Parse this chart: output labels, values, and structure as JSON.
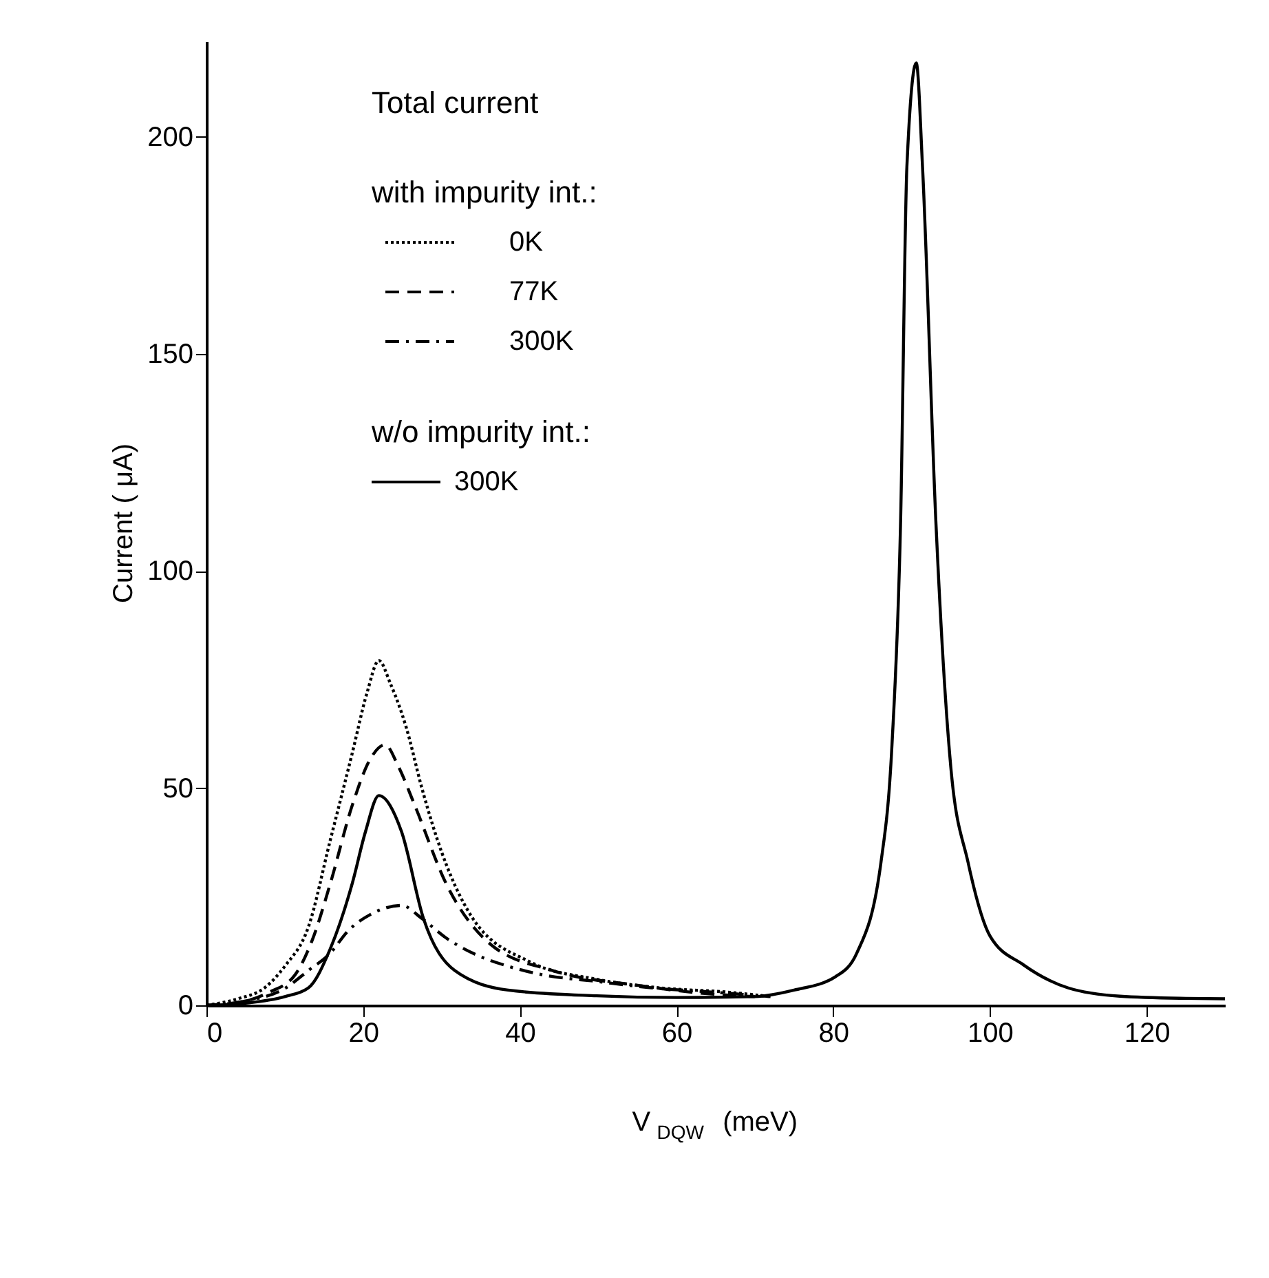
{
  "chart_data": {
    "type": "line",
    "xlabel": "V$_{DQW}$ (meV)",
    "ylabel": "Current ( μA)",
    "legend_title": "Total current",
    "legend": "top left",
    "grid": false,
    "marker": "none",
    "xlim": [
      0,
      130
    ],
    "ylim": [
      0,
      222
    ],
    "xticks": [
      0,
      20,
      40,
      60,
      80,
      100,
      120
    ],
    "yticks": [
      0,
      50,
      100,
      150,
      200
    ],
    "annotations": [
      "with impurity int.:",
      "w/o impurity int.:"
    ],
    "series": [
      {
        "name": "0K",
        "color": "#000000",
        "line_style": "dotted",
        "x": [
          0,
          4,
          7.4,
          10,
          13,
          15.8,
          18.6,
          20.5,
          22,
          23.5,
          25.5,
          27.5,
          29.5,
          34,
          41.3,
          49.8,
          58,
          66.8,
          72
        ],
        "values": [
          0,
          1.5,
          4,
          9,
          18,
          38,
          58,
          72,
          79.4,
          74,
          64,
          50,
          38,
          20,
          10,
          6,
          4,
          3,
          2
        ]
      },
      {
        "name": "77K",
        "color": "#000000",
        "line_style": "dashed",
        "x": [
          0,
          5,
          8,
          11.3,
          13.5,
          15.8,
          18.6,
          21,
          22.8,
          24.5,
          26.6,
          30.6,
          36.3,
          44.2,
          55.5,
          62,
          70
        ],
        "values": [
          0,
          1,
          3,
          7,
          15,
          28,
          46,
          57,
          60,
          55,
          46,
          28,
          14,
          8,
          4.5,
          3,
          2
        ]
      },
      {
        "name": "300K",
        "color": "#000000",
        "line_style": "dashdot",
        "x": [
          0,
          5,
          10.1,
          13,
          15.8,
          18,
          21,
          24.9,
          27.5,
          30.6,
          34,
          38.5,
          43,
          49.8,
          57,
          65,
          72
        ],
        "values": [
          0,
          1,
          4,
          8,
          12,
          17,
          21,
          23,
          20,
          15.5,
          12,
          9,
          7,
          5.5,
          4,
          3,
          2
        ]
      },
      {
        "name": "300K",
        "color": "#000000",
        "line_style": "solid",
        "x": [
          0,
          5,
          10,
          13,
          15.8,
          18.6,
          20.3,
          22,
          24.9,
          27.7,
          31.7,
          38.5,
          49.8,
          60,
          70,
          75,
          80.3,
          83,
          86.1,
          87.5,
          88.6,
          89.4,
          90.6,
          91.4,
          93.1,
          95,
          97.2,
          100,
          104.3,
          110,
          116.6,
          125,
          130
        ],
        "values": [
          0,
          0.5,
          2,
          4,
          13,
          28,
          40,
          48.3,
          40,
          20,
          8,
          3.5,
          2.2,
          1.8,
          2,
          3.5,
          6.6,
          12,
          33,
          60,
          111.5,
          193,
          217,
          193,
          111.5,
          55,
          33,
          16,
          9.3,
          4,
          2.1,
          1.6,
          1.5
        ]
      }
    ]
  }
}
